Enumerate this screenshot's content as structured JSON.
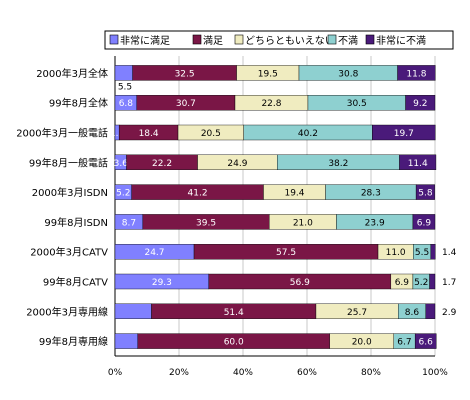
{
  "chart_data": {
    "type": "bar",
    "orientation": "horizontal",
    "stacked": true,
    "xlim": [
      0,
      100
    ],
    "x_ticks": [
      "0%",
      "20%",
      "40%",
      "60%",
      "80%",
      "100%"
    ],
    "legend_position": "top",
    "categories": [
      "2000年3月全体",
      "99年8月全体",
      "2000年3月一般電話",
      "99年8月一般電話",
      "2000年3月ISDN",
      "99年8月ISDN",
      "2000年3月CATV",
      "99年8月CATV",
      "2000年3月専用線",
      "99年8月専用線"
    ],
    "series": [
      {
        "name": "非常に満足",
        "color": "#8080ff",
        "text_color": "#ffffff",
        "values": [
          5.5,
          6.8,
          1.3,
          3.6,
          5.2,
          8.7,
          24.7,
          29.3,
          11.4,
          7.1
        ],
        "labels": [
          "",
          "6.8",
          "1.3",
          "3.6",
          "5.2",
          "8.7",
          "24.7",
          "29.3",
          "",
          ""
        ]
      },
      {
        "name": "満足",
        "color": "#7a1646",
        "text_color": "#ffffff",
        "values": [
          32.5,
          30.7,
          18.4,
          22.2,
          41.2,
          39.5,
          57.5,
          56.9,
          51.4,
          60.0
        ],
        "labels": [
          "32.5",
          "30.7",
          "18.4",
          "22.2",
          "41.2",
          "39.5",
          "57.5",
          "56.9",
          "51.4",
          "60.0"
        ]
      },
      {
        "name": "どちらともいえない",
        "color": "#f0ecc0",
        "text_color": "#000000",
        "values": [
          19.5,
          22.8,
          20.5,
          24.9,
          19.4,
          21.0,
          11.0,
          6.9,
          25.7,
          20.0
        ],
        "labels": [
          "19.5",
          "22.8",
          "20.5",
          "24.9",
          "19.4",
          "21.0",
          "11.0",
          "6.9",
          "25.7",
          "20.0"
        ]
      },
      {
        "name": "不満",
        "color": "#8ed0d0",
        "text_color": "#000000",
        "values": [
          30.8,
          30.5,
          40.2,
          38.2,
          28.3,
          23.9,
          5.5,
          5.2,
          8.6,
          6.7
        ],
        "labels": [
          "30.8",
          "30.5",
          "40.2",
          "38.2",
          "28.3",
          "23.9",
          "5.5",
          "5.2",
          "8.6",
          "6.7"
        ]
      },
      {
        "name": "非常に不満",
        "color": "#4a1a7a",
        "text_color": "#ffffff",
        "values": [
          11.8,
          9.2,
          19.7,
          11.4,
          5.8,
          6.9,
          1.4,
          1.7,
          2.9,
          6.6
        ],
        "labels": [
          "11.8",
          "9.2",
          "19.7",
          "11.4",
          "5.8",
          "6.9",
          "",
          "",
          "",
          "6.6"
        ]
      }
    ],
    "outside_labels": [
      {
        "category_index": 0,
        "text": "5.5",
        "position": "below-left"
      },
      {
        "category_index": 6,
        "text": "1.4",
        "position": "right"
      },
      {
        "category_index": 7,
        "text": "1.7",
        "position": "right"
      },
      {
        "category_index": 8,
        "text": "2.9",
        "position": "right"
      }
    ]
  }
}
